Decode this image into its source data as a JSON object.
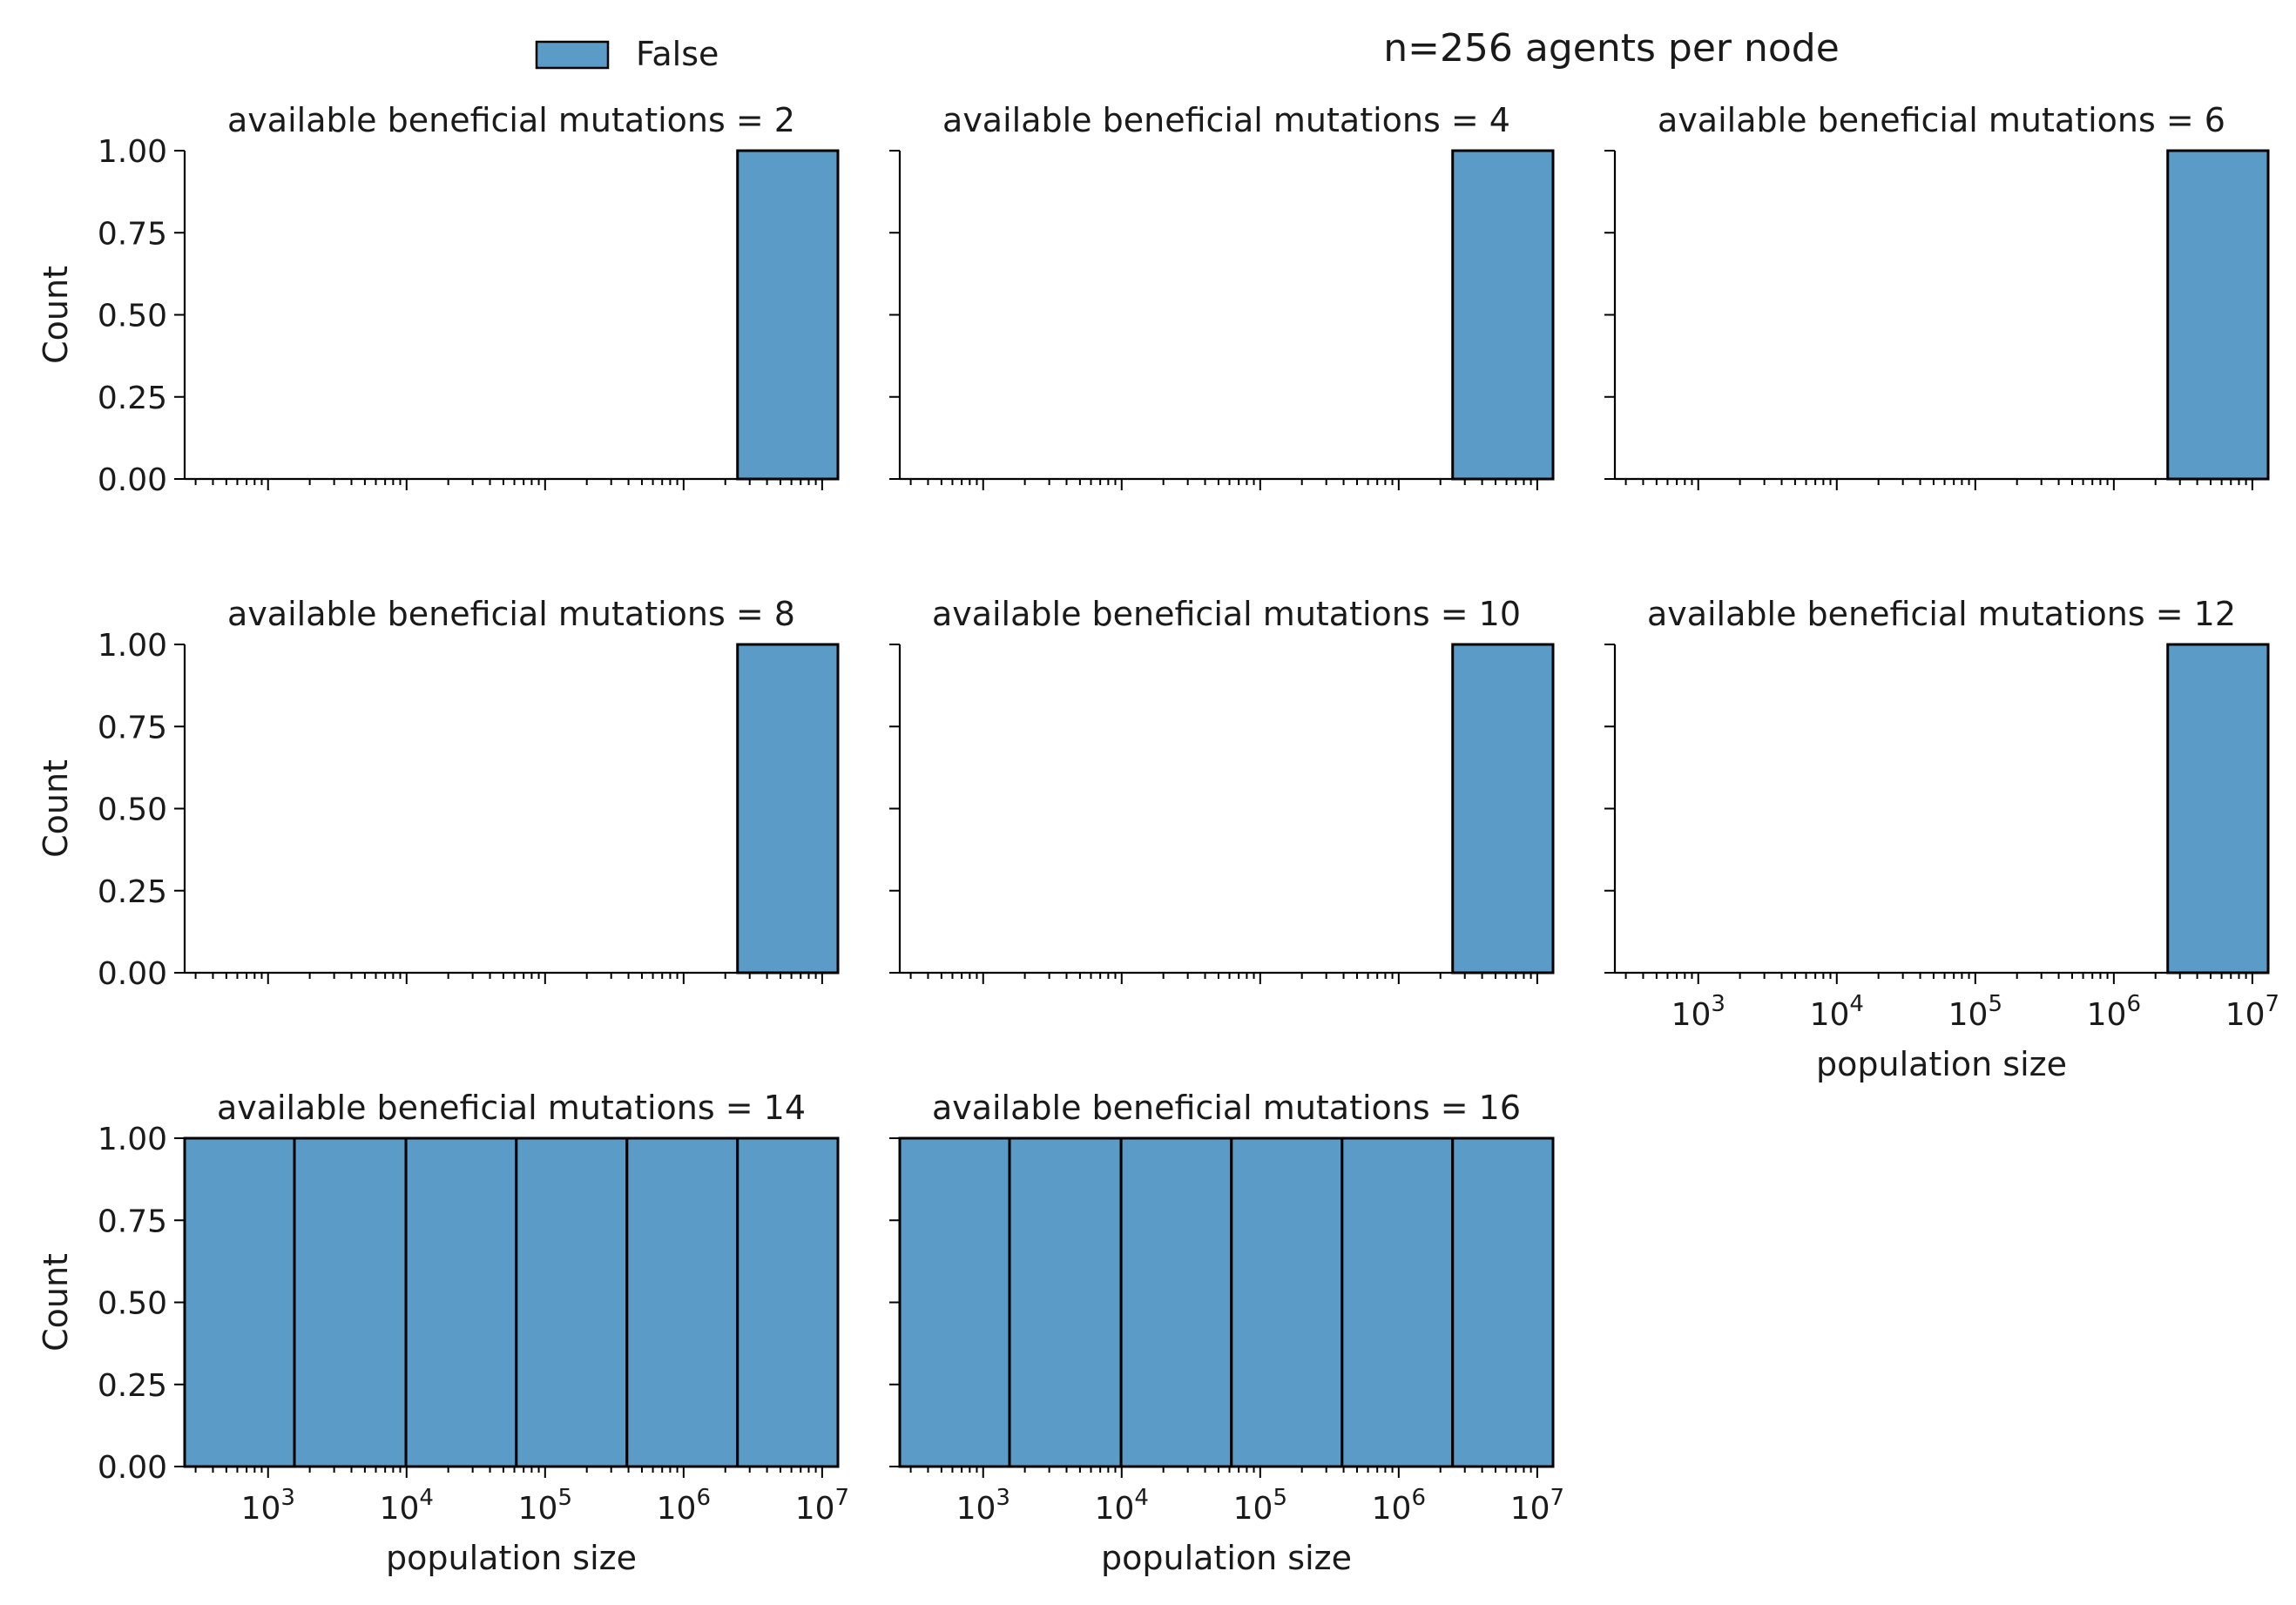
{
  "suptitle": "n=256 agents per node",
  "legend": {
    "label": "False",
    "color": "#5b9bc8",
    "placement": "top-left"
  },
  "chart_data": {
    "type": "bar",
    "xscale": "log",
    "xlim": [
      250,
      13000000
    ],
    "ylim": [
      0,
      1
    ],
    "ylabel": "Count",
    "xlabel": "population size",
    "yticks": [
      "0.00",
      "0.25",
      "0.50",
      "0.75",
      "1.00"
    ],
    "xticks": [
      {
        "base": "10",
        "exp": "3",
        "value": 1000
      },
      {
        "base": "10",
        "exp": "4",
        "value": 10000
      },
      {
        "base": "10",
        "exp": "5",
        "value": 100000
      },
      {
        "base": "10",
        "exp": "6",
        "value": 1000000
      },
      {
        "base": "10",
        "exp": "7",
        "value": 10000000
      }
    ],
    "bin_edges": [
      250,
      1550,
      9900,
      62000,
      390000,
      2450000,
      13000000
    ],
    "panels": [
      {
        "title": "available beneficial mutations = 2",
        "counts": [
          0,
          0,
          0,
          0,
          0,
          1
        ]
      },
      {
        "title": "available beneficial mutations = 4",
        "counts": [
          0,
          0,
          0,
          0,
          0,
          1
        ]
      },
      {
        "title": "available beneficial mutations = 6",
        "counts": [
          0,
          0,
          0,
          0,
          0,
          1
        ]
      },
      {
        "title": "available beneficial mutations = 8",
        "counts": [
          0,
          0,
          0,
          0,
          0,
          1
        ]
      },
      {
        "title": "available beneficial mutations = 10",
        "counts": [
          0,
          0,
          0,
          0,
          0,
          1
        ]
      },
      {
        "title": "available beneficial mutations = 12",
        "counts": [
          0,
          0,
          0,
          0,
          0,
          1
        ]
      },
      {
        "title": "available beneficial mutations = 14",
        "counts": [
          1,
          1,
          1,
          1,
          1,
          1
        ]
      },
      {
        "title": "available beneficial mutations = 16",
        "counts": [
          1,
          1,
          1,
          1,
          1,
          1
        ]
      }
    ]
  }
}
